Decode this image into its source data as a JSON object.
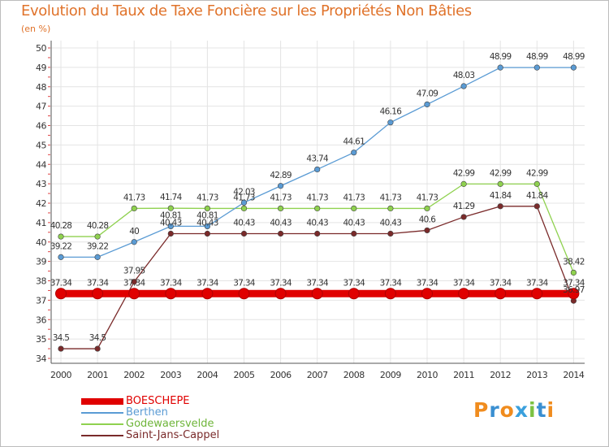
{
  "title": "Evolution du Taux de Taxe Foncière sur les Propriétés Non Bâties",
  "unit_label": "(en %)",
  "logo": {
    "text": "Proxiti",
    "colors": [
      "#f08c1e",
      "#3a8fd1",
      "#f08c1e",
      "#3aa0dd",
      "#7cc242",
      "#3a8fd1",
      "#f08c1e"
    ]
  },
  "chart_data": {
    "type": "line",
    "title": "Evolution du Taux de Taxe Foncière sur les Propriétés Non Bâties",
    "ylabel": "(en %)",
    "xlabel": "",
    "ylim": [
      34,
      50
    ],
    "yticks": [
      "34",
      "35",
      "36",
      "37",
      "38",
      "39",
      "40",
      "41",
      "42",
      "43",
      "44",
      "45",
      "46",
      "47",
      "48",
      "49",
      "50"
    ],
    "grid": true,
    "categories": [
      "2000",
      "2001",
      "2002",
      "2003",
      "2004",
      "2005",
      "2006",
      "2007",
      "2008",
      "2009",
      "2010",
      "2011",
      "2012",
      "2013",
      "2014"
    ],
    "series": [
      {
        "name": "BOESCHEPE",
        "color": "#e00000",
        "thick": true,
        "values": [
          37.34,
          37.34,
          37.34,
          37.34,
          37.34,
          37.34,
          37.34,
          37.34,
          37.34,
          37.34,
          37.34,
          37.34,
          37.34,
          37.34,
          37.34
        ],
        "labels": [
          "37.34",
          "37.34",
          "37.34",
          "37.34",
          "37.34",
          "37.34",
          "37.34",
          "37.34",
          "37.34",
          "37.34",
          "37.34",
          "37.34",
          "37.34",
          "37.34",
          "37.34"
        ]
      },
      {
        "name": "Berthen",
        "color": "#5a9bd4",
        "values": [
          39.22,
          39.22,
          40,
          40.81,
          40.81,
          42.03,
          42.89,
          43.74,
          44.61,
          46.16,
          47.09,
          48.03,
          48.99,
          48.99,
          48.99
        ],
        "labels": [
          "39.22",
          "39.22",
          "40",
          "40.81",
          "40.81",
          "42.03",
          "42.89",
          "43.74",
          "44.61",
          "46.16",
          "47.09",
          "48.03",
          "48.99",
          "48.99",
          "48.99"
        ]
      },
      {
        "name": "Godewaersvelde",
        "color": "#8fd14f",
        "values": [
          40.28,
          40.28,
          41.73,
          41.74,
          41.73,
          41.73,
          41.73,
          41.73,
          41.73,
          41.73,
          41.73,
          42.99,
          42.99,
          42.99,
          38.42
        ],
        "labels": [
          "40.28",
          "40.28",
          "41.73",
          "41.74",
          "41.73",
          "41.73",
          "41.73",
          "41.73",
          "41.73",
          "41.73",
          "41.73",
          "42.99",
          "42.99",
          "42.99",
          "38.42"
        ]
      },
      {
        "name": "Saint-Jans-Cappel",
        "color": "#7a2a2a",
        "values": [
          34.5,
          34.5,
          37.95,
          40.43,
          40.43,
          40.43,
          40.43,
          40.43,
          40.43,
          40.43,
          40.6,
          41.29,
          41.84,
          41.84,
          36.97
        ],
        "labels": [
          "34.5",
          "34.5",
          "37.95",
          "40.43",
          "40.43",
          "40.43",
          "40.43",
          "40.43",
          "40.43",
          "40.43",
          "40.6",
          "41.29",
          "41.84",
          "41.84",
          "36.97"
        ]
      }
    ],
    "legend": {
      "position": "bottom-left"
    }
  }
}
